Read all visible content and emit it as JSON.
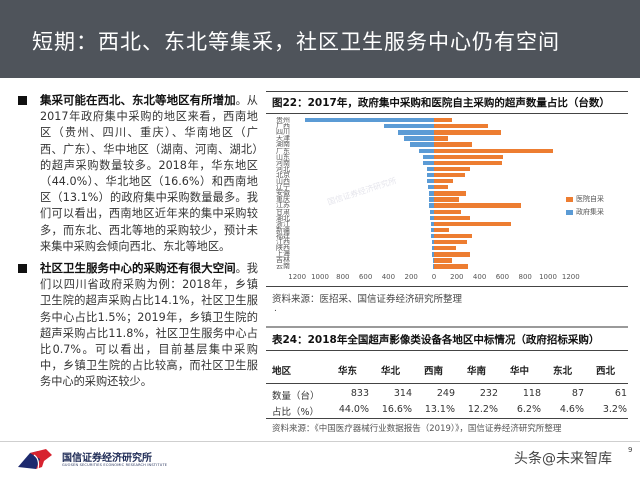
{
  "header": {
    "title": "短期：西北、东北等集采，社区卫生服务中心仍有空间"
  },
  "left_panel": {
    "bullets": [
      {
        "heading": "集采可能在西北、东北等地区有所增加",
        "body": "。从2017年政府集中采购的地区来看，西南地区（贵州、四川、重庆）、华南地区（广西、广东）、华中地区（湖南、河南、湖北）的超声采购数量较多。2018年，华东地区（44.0%）、华北地区（16.6%）和西南地区（13.1%）的政府集中采购数量最多。我们可以看出，西南地区近年来的集中采购较多，而东北、西北等地的采购较少，预计未来集中采购会倾向西北、东北等地区。"
      },
      {
        "heading": "社区卫生服务中心的采购还有很大空间",
        "body": "。我们以四川省政府采购为例：2018年，乡镇卫生院的超声采购占比14.1%，社区卫生服务中心占比1.5%；2019年，乡镇卫生院的超声采购占比11.8%，社区卫生服务中心占比0.7%。可以看出，目前基层集中采购中，乡镇卫生院的占比较高，而社区卫生服务中心的采购还较少。"
      }
    ]
  },
  "figure": {
    "title": "图22：2017年，政府集中采购和医院自主采购的超声数量占比（台数）",
    "source": "资料来源：医招采、国信证券经济研究所整理",
    "dot": ".",
    "legend": [
      {
        "label": "医院自采",
        "color": "#ed7d31"
      },
      {
        "label": "政府集采",
        "color": "#5b9bd5"
      }
    ],
    "ticks": [
      "1200",
      "1000",
      "800",
      "600",
      "400",
      "200",
      "0",
      "200",
      "400",
      "600",
      "800",
      "1000",
      "1200"
    ]
  },
  "chart_data": {
    "type": "bar",
    "orientation": "horizontal-butterfly",
    "title": "图22：2017年，政府集中采购和医院自主采购的超声数量占比（台数）",
    "xlabel": "",
    "ylabel": "",
    "xlim": [
      -1200,
      1200
    ],
    "grid": false,
    "legend_position": "right",
    "categories": [
      "贵州",
      "广西",
      "四川",
      "天津",
      "湖南",
      "广东",
      "山东",
      "河南",
      "河北",
      "北京",
      "山西",
      "辽宁",
      "安徽",
      "重庆",
      "江苏",
      "甘肃",
      "湖北",
      "浙江",
      "新疆",
      "福建",
      "江西",
      "陕西",
      "上海",
      "吉林",
      "云南"
    ],
    "series": [
      {
        "name": "政府集采",
        "color": "#5b9bd5",
        "direction": "left",
        "values": [
          1130,
          435,
          320,
          265,
          210,
          135,
          100,
          100,
          65,
          65,
          60,
          55,
          47,
          44,
          41,
          38,
          32,
          29,
          26,
          23,
          20,
          18,
          15,
          12,
          9
        ]
      },
      {
        "name": "医院自采",
        "color": "#ed7d31",
        "direction": "right",
        "values": [
          160,
          470,
          585,
          125,
          330,
          1040,
          605,
          595,
          318,
          268,
          165,
          125,
          285,
          220,
          760,
          235,
          318,
          675,
          135,
          330,
          290,
          190,
          315,
          157,
          300
        ]
      }
    ]
  },
  "table": {
    "title": "表24：2018年全国超声影像类设备各地区中标情况（政府招标采购）",
    "headers": [
      "地区",
      "华东",
      "华北",
      "西南",
      "华南",
      "华中",
      "东北",
      "西北"
    ],
    "rows": [
      [
        "数量（台）",
        "833",
        "314",
        "249",
        "232",
        "118",
        "87",
        "61"
      ],
      [
        "占比（%）",
        "44.0%",
        "16.6%",
        "13.1%",
        "12.2%",
        "6.2%",
        "4.6%",
        "3.2%"
      ]
    ],
    "source": "资料来源：《中国医疗器械行业数据报告（2019）》，国信证券经济研究所整理"
  },
  "footer": {
    "logo_cn": "国信证券经济研究所",
    "logo_en": "GUOSEN SECURITIES ECONOMIC RESEARCH INSTITUTE",
    "brand": "头条@未来智库",
    "page": "9"
  }
}
